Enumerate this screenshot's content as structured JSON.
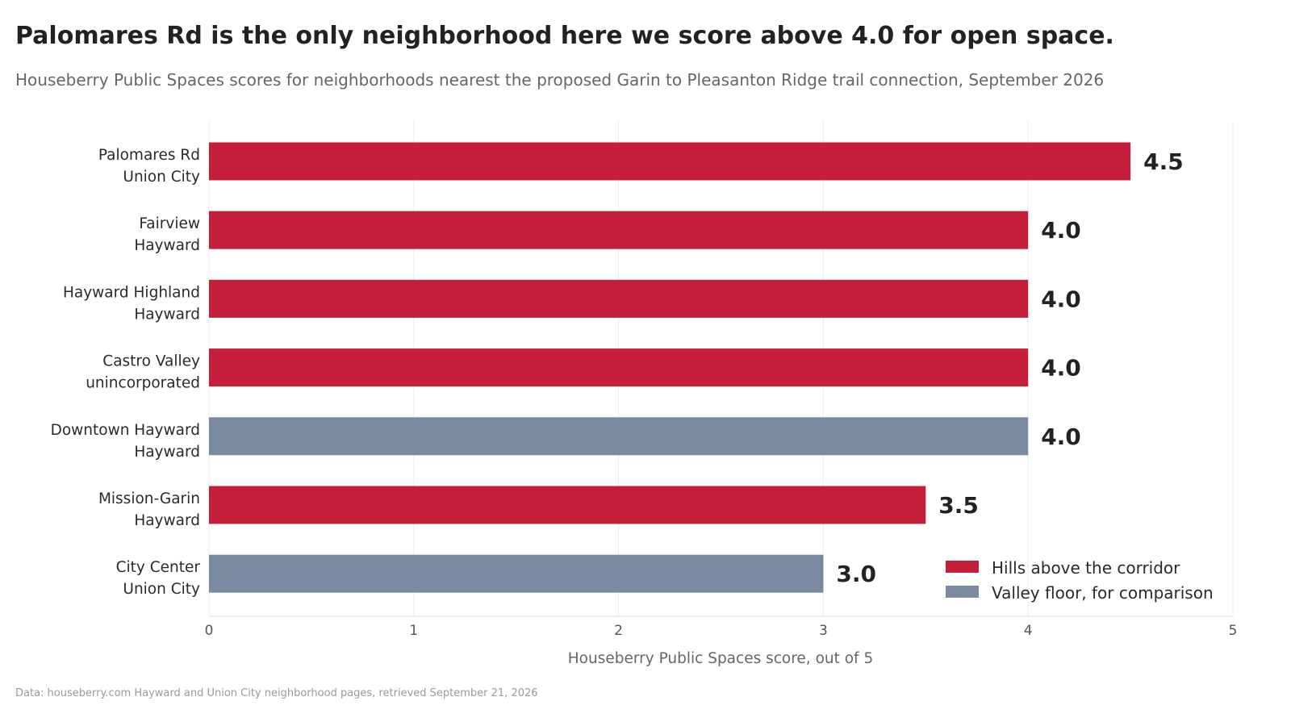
{
  "title": "Palomares Rd is the only neighborhood here we score above 4.0 for open space.",
  "subtitle": "Houseberry Public Spaces scores for neighborhoods nearest the proposed Garin to Pleasanton Ridge trail connection, September 2026",
  "footnote": "Data: houseberry.com Hayward and Union City neighborhood pages, retrieved September 21, 2026",
  "colors": {
    "hills": "#c41e3a",
    "valley": "#7a8aa0"
  },
  "chart_data": {
    "type": "bar",
    "orientation": "horizontal",
    "title": "Palomares Rd is the only neighborhood here we score above 4.0 for open space.",
    "subtitle": "Houseberry Public Spaces scores for neighborhoods nearest the proposed Garin to Pleasanton Ridge trail connection, September 2026",
    "xlabel": "Houseberry Public Spaces score, out of 5",
    "xlim": [
      0,
      5
    ],
    "xticks": [
      "0",
      "1",
      "2",
      "3",
      "4",
      "5"
    ],
    "grid": true,
    "legend_position": "bottom-right",
    "legend": [
      {
        "label": "Hills above the corridor",
        "group": "hills"
      },
      {
        "label": "Valley floor, for comparison",
        "group": "valley"
      }
    ],
    "bars": [
      {
        "name": "Palomares Rd",
        "city": "Union City",
        "value": 4.5,
        "label": "4.5",
        "group": "hills"
      },
      {
        "name": "Fairview",
        "city": "Hayward",
        "value": 4.0,
        "label": "4.0",
        "group": "hills"
      },
      {
        "name": "Hayward Highland",
        "city": "Hayward",
        "value": 4.0,
        "label": "4.0",
        "group": "hills"
      },
      {
        "name": "Castro Valley",
        "city": "unincorporated",
        "value": 4.0,
        "label": "4.0",
        "group": "hills"
      },
      {
        "name": "Downtown Hayward",
        "city": "Hayward",
        "value": 4.0,
        "label": "4.0",
        "group": "valley"
      },
      {
        "name": "Mission-Garin",
        "city": "Hayward",
        "value": 3.5,
        "label": "3.5",
        "group": "hills"
      },
      {
        "name": "City Center",
        "city": "Union City",
        "value": 3.0,
        "label": "3.0",
        "group": "valley"
      }
    ]
  }
}
